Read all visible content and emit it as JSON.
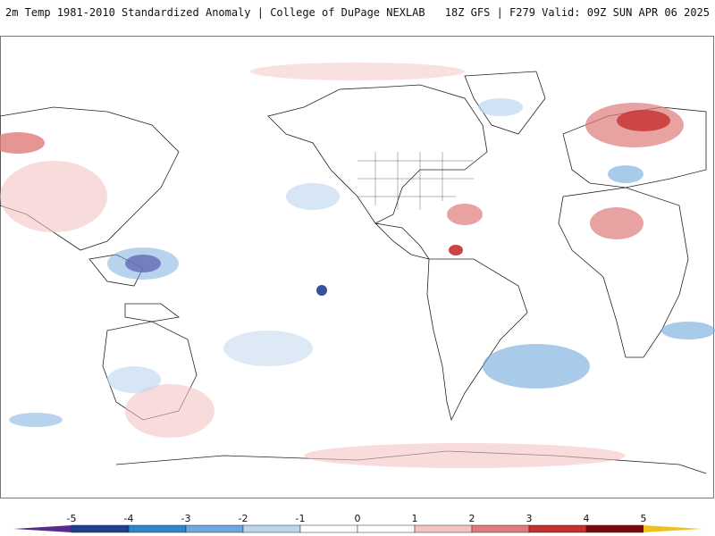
{
  "header": {
    "title_left": "2m Temp 1981-2010 Standardized Anomaly | College of DuPage NEXLAB",
    "title_right": "18Z GFS | F279 Valid: 09Z SUN APR 06 2025"
  },
  "legend": {
    "ticks": [
      "-5",
      "-4",
      "-3",
      "-2",
      "-1",
      "0",
      "1",
      "2",
      "3",
      "4",
      "5"
    ],
    "colors": [
      "#5a2a8c",
      "#1f3f8f",
      "#2f86c8",
      "#6fa8dc",
      "#bcd5ee",
      "#ffffff",
      "#ffffff",
      "#f4c4c4",
      "#e07a7a",
      "#c43030",
      "#7a0a0a",
      "#f0c020"
    ]
  }
}
